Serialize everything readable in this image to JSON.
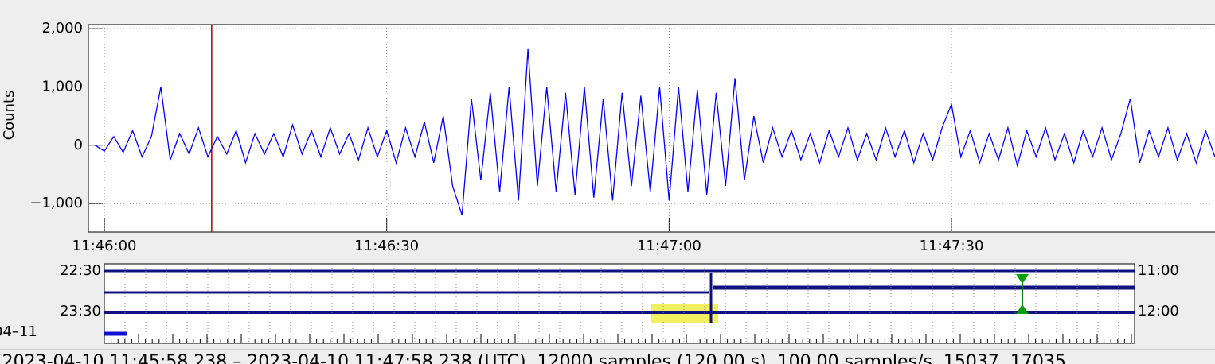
{
  "chart_data": {
    "type": "line",
    "y_label": "Counts",
    "color": "#0000ff",
    "x": [
      -1,
      0,
      1,
      2,
      3,
      4,
      5,
      6,
      7,
      8,
      9,
      10,
      11,
      12,
      13,
      14,
      15,
      16,
      17,
      18,
      19,
      20,
      21,
      22,
      23,
      24,
      25,
      26,
      27,
      28,
      29,
      30,
      31,
      32,
      33,
      34,
      35,
      36,
      37,
      38,
      39,
      40,
      41,
      42,
      43,
      44,
      45,
      46,
      47,
      48,
      49,
      50,
      51,
      52,
      53,
      54,
      55,
      56,
      57,
      58,
      59,
      60,
      61,
      62,
      63,
      64,
      65,
      66,
      67,
      68,
      69,
      70,
      71,
      72,
      73,
      74,
      75,
      76,
      77,
      78,
      79,
      80,
      81,
      82,
      83,
      84,
      85,
      86,
      87,
      88,
      89,
      90,
      91,
      92,
      93,
      94,
      95,
      96,
      97,
      98,
      99,
      100,
      101,
      102,
      103,
      104,
      105,
      106,
      107,
      108,
      109,
      110,
      111,
      112,
      113,
      114,
      115,
      116,
      117,
      118
    ],
    "values": [
      0,
      -100,
      150,
      -120,
      250,
      -200,
      150,
      1000,
      -250,
      200,
      -150,
      300,
      -200,
      150,
      -150,
      250,
      -300,
      200,
      -150,
      200,
      -200,
      350,
      -150,
      250,
      -200,
      300,
      -150,
      200,
      -250,
      300,
      -200,
      250,
      -300,
      300,
      -200,
      400,
      -300,
      500,
      -700,
      -1200,
      800,
      -600,
      900,
      -800,
      1000,
      -950,
      1650,
      -700,
      1000,
      -800,
      900,
      -850,
      1000,
      -900,
      800,
      -950,
      900,
      -700,
      850,
      -800,
      1000,
      -950,
      1000,
      -800,
      950,
      -850,
      900,
      -700,
      1150,
      -600,
      500,
      -300,
      300,
      -200,
      250,
      -250,
      200,
      -300,
      250,
      -200,
      300,
      -250,
      200,
      -250,
      300,
      -200,
      250,
      -300,
      200,
      -250,
      300,
      700,
      -200,
      250,
      -300,
      200,
      -250,
      300,
      -350,
      250,
      -200,
      300,
      -250,
      200,
      -300,
      250,
      -200,
      300,
      -250,
      200,
      800,
      -300,
      250,
      -200,
      300,
      -250,
      200,
      -300,
      250,
      -200
    ],
    "xlim": [
      -1.7,
      118
    ],
    "xticks": [
      {
        "value": 0,
        "label": "11:46:00"
      },
      {
        "value": 30,
        "label": "11:46:30"
      },
      {
        "value": 60,
        "label": "11:47:00"
      },
      {
        "value": 90,
        "label": "11:47:30"
      }
    ],
    "ylim": [
      -1490,
      2070
    ],
    "yticks": [
      {
        "value": -1000,
        "label": "−1,000"
      },
      0,
      {
        "value": 1000,
        "label": "1,000"
      },
      {
        "value": 2000,
        "label": "2,000"
      }
    ],
    "grid": true,
    "cursor_x": 11.4,
    "cursor_color": "#b00000"
  },
  "helicorder": {
    "left_labels": [
      "22:30",
      "23:30"
    ],
    "right_labels": [
      "11:00",
      "12:00"
    ],
    "date_label": "04–11"
  },
  "status": "[2023-04-10 11:45:58.238 – 2023-04-10 11:47:58.238 (UTC), 12000 samples (120.00 s), 100.00 samples/s, 15037..17035"
}
